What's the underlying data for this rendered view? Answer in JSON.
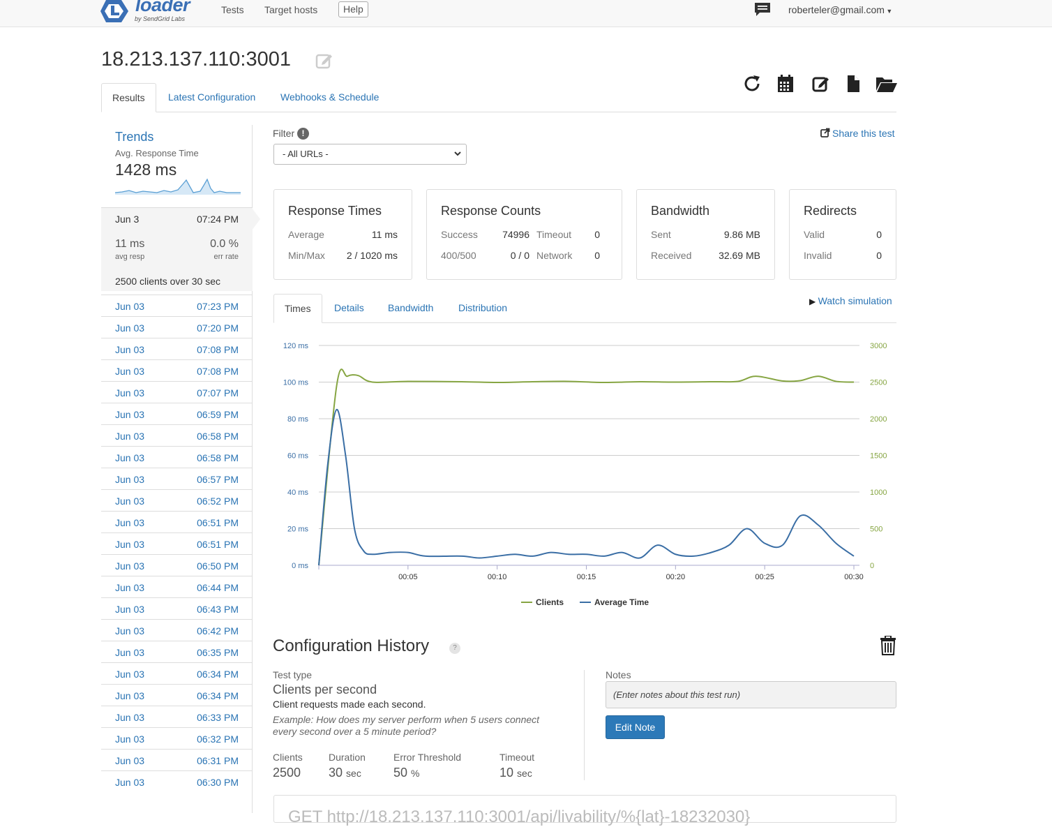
{
  "nav": {
    "brand": "loader",
    "brand_sub": "by SendGrid Labs",
    "tests": "Tests",
    "target_hosts": "Target hosts",
    "help": "Help",
    "user": "roberteler@gmail.com"
  },
  "title": "18.213.137.110:3001",
  "tabs": [
    "Results",
    "Latest Configuration",
    "Webhooks & Schedule"
  ],
  "sidebar": {
    "trends_title": "Trends",
    "trends_sub": "Avg. Response Time",
    "trends_value": "1428 ms",
    "selected": {
      "date": "Jun 3",
      "time": "07:24 PM",
      "avg_resp": "11 ms",
      "avg_resp_label": "avg resp",
      "err_rate": "0.0 %",
      "err_rate_label": "err rate",
      "clients_pre": "2500",
      "clients_mid": " clients over ",
      "clients_dur": "30",
      "clients_unit": " sec"
    },
    "runs": [
      {
        "date": "Jun 03",
        "time": "07:23 PM"
      },
      {
        "date": "Jun 03",
        "time": "07:20 PM"
      },
      {
        "date": "Jun 03",
        "time": "07:08 PM"
      },
      {
        "date": "Jun 03",
        "time": "07:08 PM"
      },
      {
        "date": "Jun 03",
        "time": "07:07 PM"
      },
      {
        "date": "Jun 03",
        "time": "06:59 PM"
      },
      {
        "date": "Jun 03",
        "time": "06:58 PM"
      },
      {
        "date": "Jun 03",
        "time": "06:58 PM"
      },
      {
        "date": "Jun 03",
        "time": "06:57 PM"
      },
      {
        "date": "Jun 03",
        "time": "06:52 PM"
      },
      {
        "date": "Jun 03",
        "time": "06:51 PM"
      },
      {
        "date": "Jun 03",
        "time": "06:51 PM"
      },
      {
        "date": "Jun 03",
        "time": "06:50 PM"
      },
      {
        "date": "Jun 03",
        "time": "06:44 PM"
      },
      {
        "date": "Jun 03",
        "time": "06:43 PM"
      },
      {
        "date": "Jun 03",
        "time": "06:42 PM"
      },
      {
        "date": "Jun 03",
        "time": "06:35 PM"
      },
      {
        "date": "Jun 03",
        "time": "06:34 PM"
      },
      {
        "date": "Jun 03",
        "time": "06:34 PM"
      },
      {
        "date": "Jun 03",
        "time": "06:33 PM"
      },
      {
        "date": "Jun 03",
        "time": "06:32 PM"
      },
      {
        "date": "Jun 03",
        "time": "06:31 PM"
      },
      {
        "date": "Jun 03",
        "time": "06:30 PM"
      }
    ]
  },
  "filter": {
    "label": "Filter",
    "info": "!",
    "selected": "- All URLs -",
    "share": "Share this test"
  },
  "cards": {
    "response_times": {
      "title": "Response Times",
      "avg_label": "Average",
      "avg_value": "11 ms",
      "mm_label": "Min/Max",
      "mm_value": "2 / 1020 ms"
    },
    "response_counts": {
      "title": "Response Counts",
      "success_label": "Success",
      "success_value": "74996",
      "timeout_label": "Timeout",
      "timeout_value": "0",
      "err_label": "400/500",
      "err_value": "0 / 0",
      "network_label": "Network",
      "network_value": "0"
    },
    "bandwidth": {
      "title": "Bandwidth",
      "sent_label": "Sent",
      "sent_value": "9.86 MB",
      "recv_label": "Received",
      "recv_value": "32.69 MB"
    },
    "redirects": {
      "title": "Redirects",
      "valid_label": "Valid",
      "valid_value": "0",
      "invalid_label": "Invalid",
      "invalid_value": "0"
    }
  },
  "chart_tabs": [
    "Times",
    "Details",
    "Bandwidth",
    "Distribution"
  ],
  "watch_simulation": "Watch simulation",
  "chart_data": {
    "type": "line",
    "title": "",
    "x_ticks": [
      "00:05",
      "00:10",
      "00:15",
      "00:20",
      "00:25",
      "00:30"
    ],
    "y_left_ticks": [
      "0 ms",
      "20 ms",
      "40 ms",
      "60 ms",
      "80 ms",
      "100 ms",
      "120 ms"
    ],
    "y_right_ticks": [
      "0",
      "500",
      "1000",
      "1500",
      "2000",
      "2500",
      "3000"
    ],
    "ylim_left": [
      0,
      120
    ],
    "ylim_right": [
      0,
      3000
    ],
    "xlim": [
      0,
      30
    ],
    "series": [
      {
        "name": "Clients",
        "axis": "right",
        "color": "#86a542",
        "x": [
          0,
          1,
          1.6,
          2.2,
          3,
          5,
          8,
          10,
          12,
          14,
          16,
          18,
          20,
          22,
          23.5,
          24.5,
          26,
          27,
          28,
          29,
          30
        ],
        "values": [
          0,
          2450,
          2580,
          2590,
          2500,
          2510,
          2505,
          2495,
          2505,
          2510,
          2495,
          2505,
          2500,
          2505,
          2510,
          2580,
          2515,
          2520,
          2580,
          2510,
          2500
        ]
      },
      {
        "name": "Average Time",
        "axis": "left",
        "color": "#3a6ea5",
        "x": [
          0,
          0.5,
          1,
          1.5,
          2,
          2.5,
          3,
          4,
          5,
          6,
          8,
          9,
          10,
          11,
          12,
          13,
          14,
          15,
          16,
          17,
          18,
          19,
          20,
          21,
          22,
          23,
          24,
          25,
          26,
          27,
          28,
          29,
          30
        ],
        "values": [
          0,
          55,
          85,
          60,
          20,
          8,
          6,
          7,
          7,
          5,
          5,
          4,
          5,
          6,
          5,
          7,
          6,
          6,
          5,
          7,
          4,
          11,
          6,
          5,
          7,
          11,
          20,
          12,
          11,
          27,
          22,
          12,
          5
        ]
      }
    ],
    "legend": [
      "Clients",
      "Average Time"
    ]
  },
  "config": {
    "title": "Configuration History",
    "help": "?",
    "test_type_label": "Test type",
    "test_type": "Clients per second",
    "test_desc": "Client requests made each second.",
    "example": "Example: How does my server perform when 5 users connect every second over a 5 minute period?",
    "clients_label": "Clients",
    "clients": "2500",
    "duration_label": "Duration",
    "duration": "30",
    "duration_unit": "sec",
    "error_label": "Error Threshold",
    "error": "50",
    "error_unit": "%",
    "timeout_label": "Timeout",
    "timeout": "10",
    "timeout_unit": "sec",
    "notes_label": "Notes",
    "notes_placeholder": "(Enter notes about this test run)",
    "edit_note": "Edit Note",
    "request_line": "GET http://18.213.137.110:3001/api/livability/%{lat}-18232030}"
  },
  "colors": {
    "link": "#2a74b4",
    "clients": "#86a542",
    "avg_time": "#3a6ea5",
    "button": "#2c79b8"
  }
}
